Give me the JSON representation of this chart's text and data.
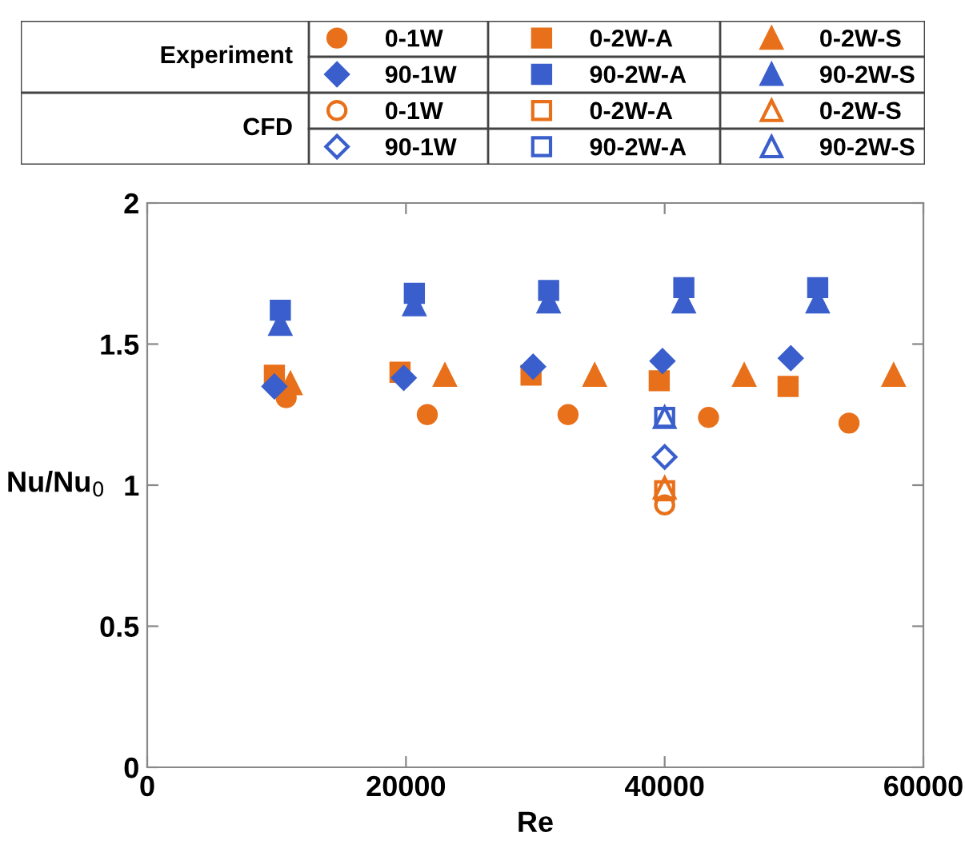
{
  "chart_data": {
    "type": "scatter",
    "xlabel": "Re",
    "ylabel": "Nu/Nu$_{0}$",
    "xlim": [
      0,
      60000
    ],
    "xticks": [
      0,
      20000,
      40000,
      60000
    ],
    "ylim": [
      0,
      2
    ],
    "yticks": [
      0,
      0.5,
      1,
      1.5,
      2
    ],
    "grid": false,
    "legend": "top",
    "annotations": [
      "Experiment",
      "CFD"
    ],
    "series": [
      {
        "name": "0-1W",
        "marker": "circle",
        "color": "#e8701a",
        "x": [
          10740,
          21650,
          32530,
          43390,
          54250
        ],
        "values": [
          1.31,
          1.25,
          1.25,
          1.24,
          1.22
        ]
      },
      {
        "name": "0-2W-A",
        "marker": "square",
        "color": "#e8701a",
        "x": [
          9830,
          19540,
          29670,
          39580,
          49540
        ],
        "values": [
          1.39,
          1.4,
          1.39,
          1.37,
          1.35
        ]
      },
      {
        "name": "0-2W-S",
        "marker": "triangle",
        "color": "#e8701a",
        "x": [
          11070,
          23010,
          34590,
          46150,
          57700
        ],
        "values": [
          1.36,
          1.39,
          1.39,
          1.39,
          1.39
        ]
      },
      {
        "name": "90-1W",
        "marker": "diamond",
        "color": "#3a5fcd",
        "x": [
          9830,
          19830,
          29830,
          39830,
          49750
        ],
        "values": [
          1.35,
          1.38,
          1.42,
          1.44,
          1.45
        ]
      },
      {
        "name": "90-2W-A",
        "marker": "square",
        "color": "#3a5fcd",
        "x": [
          10290,
          20650,
          31030,
          41480,
          51830
        ],
        "values": [
          1.62,
          1.68,
          1.69,
          1.7,
          1.7
        ]
      },
      {
        "name": "90-2W-S",
        "marker": "triangle",
        "color": "#3a5fcd",
        "x": [
          10290,
          20650,
          31030,
          41480,
          51830
        ],
        "values": [
          1.57,
          1.64,
          1.65,
          1.65,
          1.65
        ]
      },
      {
        "name": "0-1W",
        "marker": "circle",
        "color": "#e8701a",
        "x": [
          40000
        ],
        "values": [
          0.93
        ]
      },
      {
        "name": "0-2W-A",
        "marker": "square",
        "color": "#e8701a",
        "x": [
          40000
        ],
        "values": [
          0.98
        ]
      },
      {
        "name": "0-2W-S",
        "marker": "triangle",
        "color": "#e8701a",
        "x": [
          40000
        ],
        "values": [
          0.99
        ]
      },
      {
        "name": "90-1W",
        "marker": "diamond",
        "color": "#3a5fcd",
        "x": [
          40000
        ],
        "values": [
          1.1
        ]
      },
      {
        "name": "90-2W-A",
        "marker": "square",
        "color": "#3a5fcd",
        "x": [
          40000
        ],
        "values": [
          1.24
        ]
      },
      {
        "name": "90-2W-S",
        "marker": "triangle",
        "color": "#3a5fcd",
        "x": [
          40000
        ],
        "values": [
          1.24
        ]
      }
    ]
  }
}
